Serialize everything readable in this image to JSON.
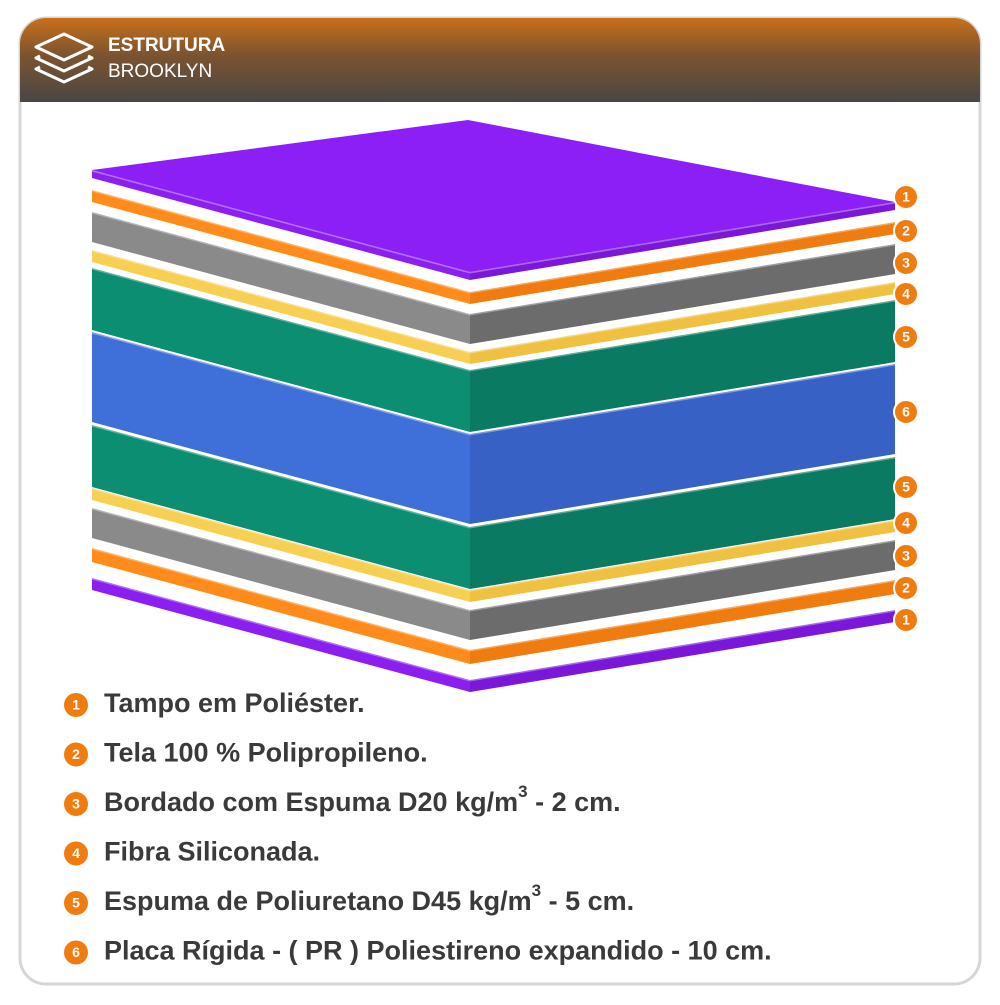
{
  "header": {
    "title": "ESTRUTURA",
    "subtitle": "BROOKLYN"
  },
  "layer_badges": [
    "1",
    "2",
    "3",
    "4",
    "5",
    "6",
    "5",
    "4",
    "3",
    "2",
    "1"
  ],
  "legend": [
    {
      "number": "1",
      "text": "Tampo em Poliéster."
    },
    {
      "number": "2",
      "text": "Tela 100 % Polipropileno."
    },
    {
      "number": "3",
      "text": "Bordado com Espuma D20 kg/m",
      "superscript": "3",
      "suffix": " - 2 cm."
    },
    {
      "number": "4",
      "text": "Fibra Siliconada."
    },
    {
      "number": "5",
      "text": "Espuma de Poliuretano D45 kg/m",
      "superscript": "3",
      "suffix": " - 5 cm."
    },
    {
      "number": "6",
      "text": "Placa Rígida - ( PR ) Poliestireno expandido - 10 cm."
    }
  ]
}
